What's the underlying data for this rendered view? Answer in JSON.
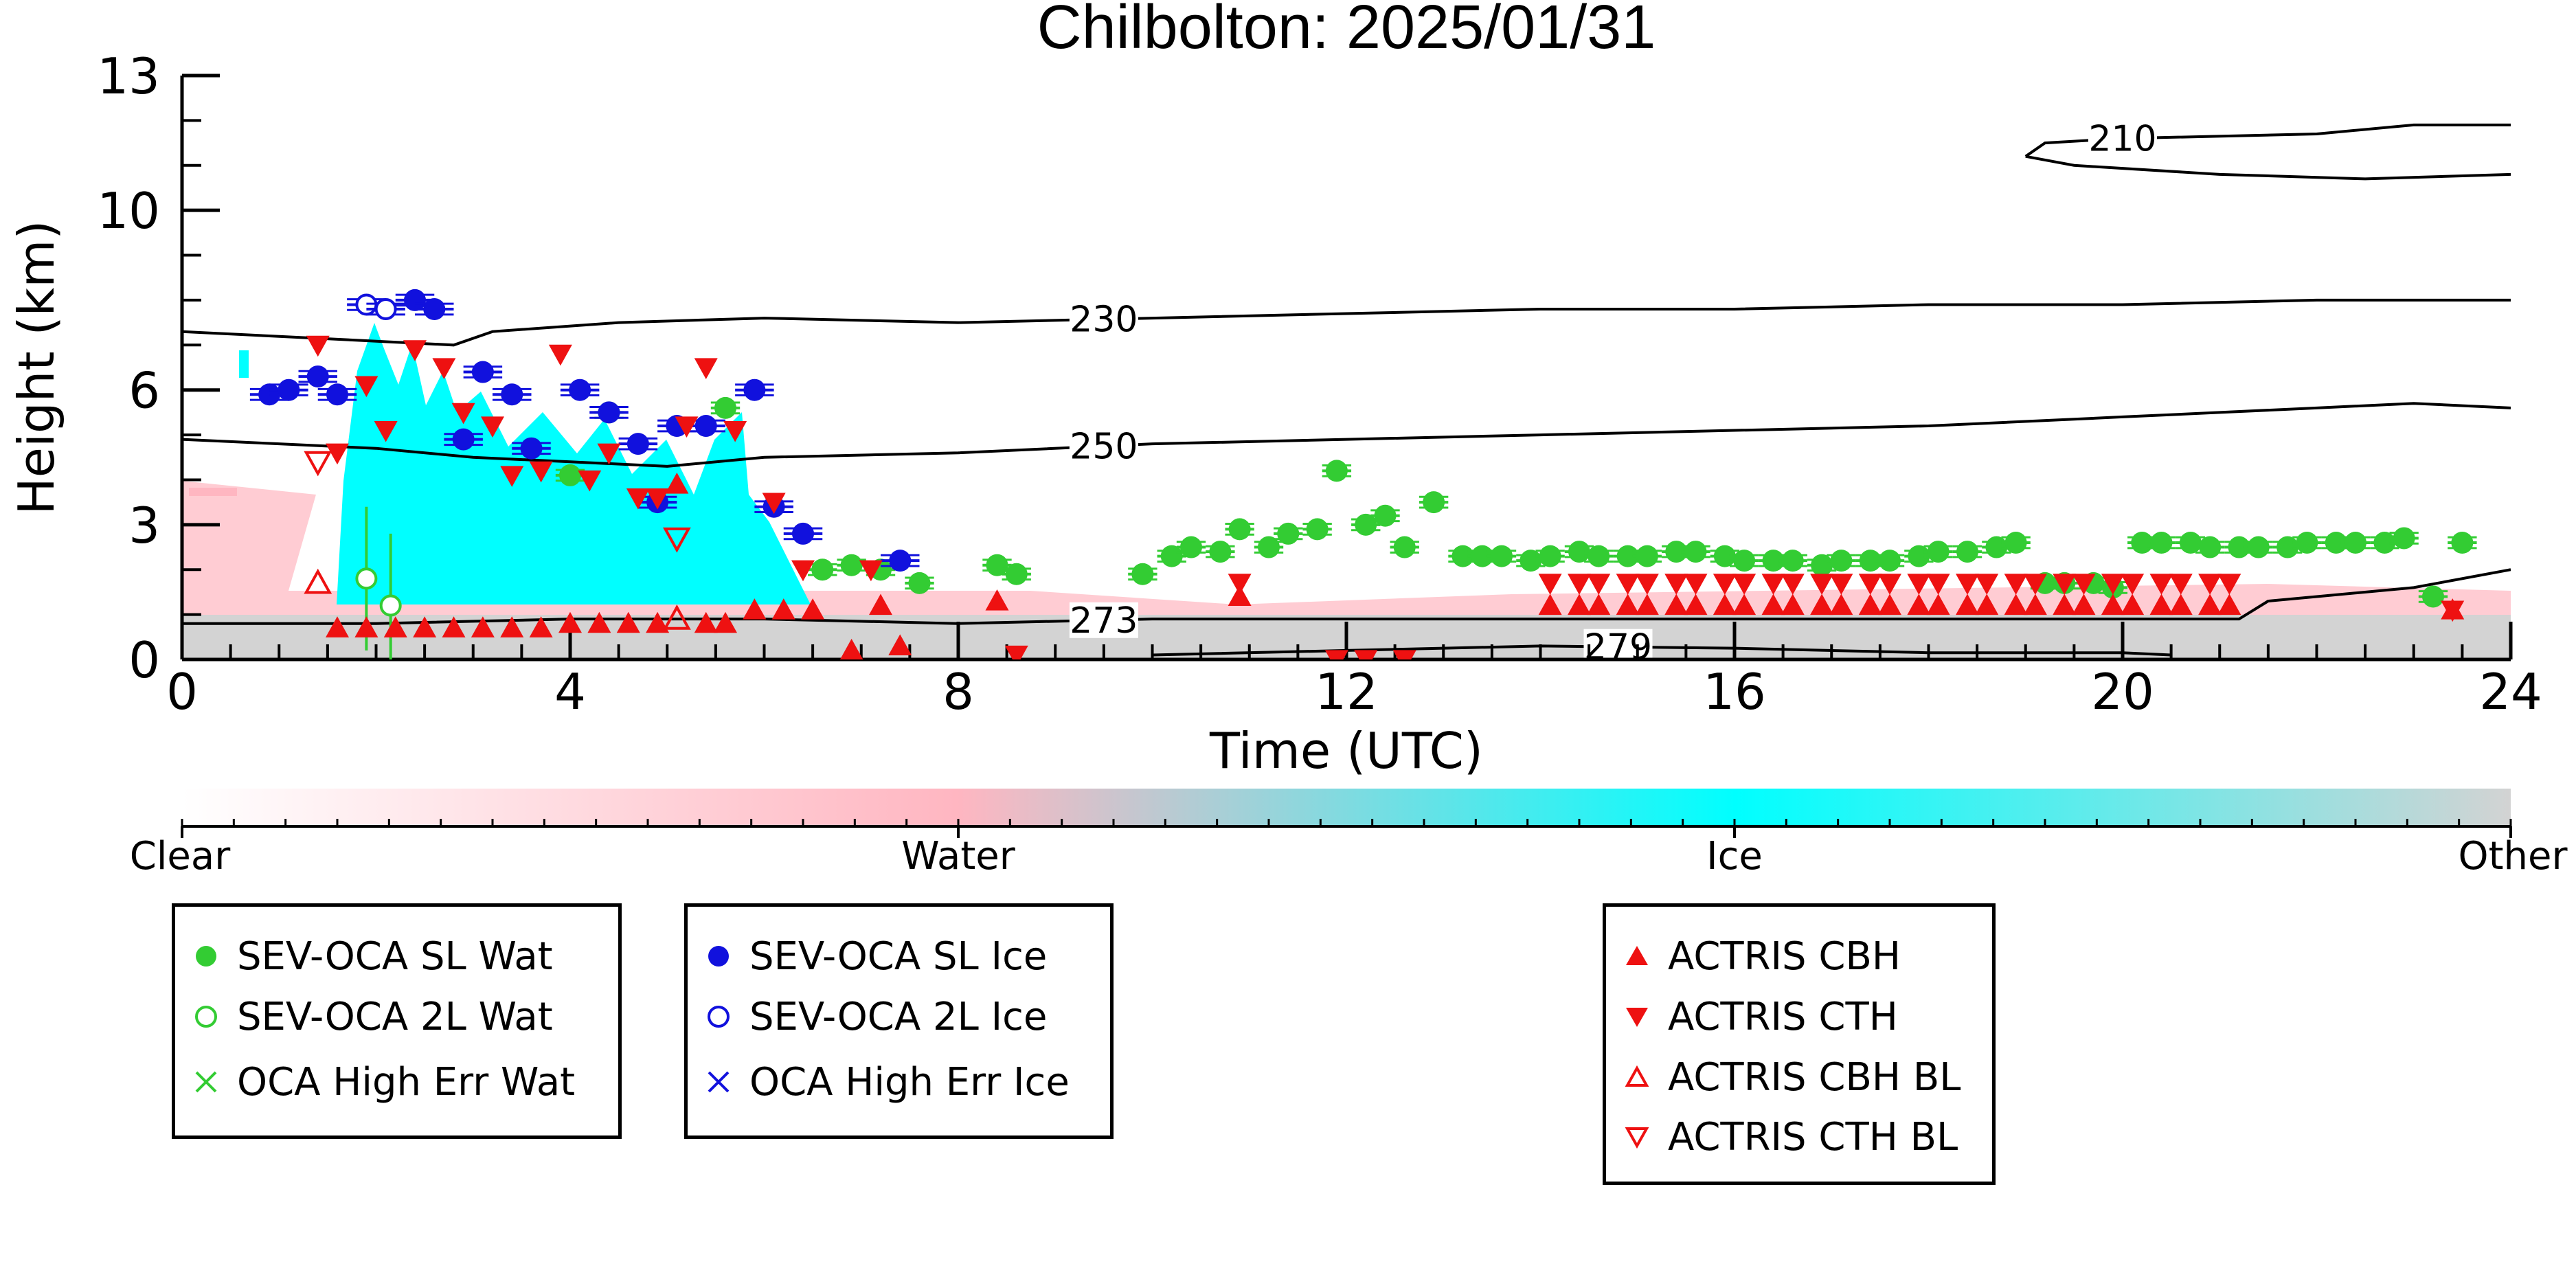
{
  "chart_data": {
    "type": "scatter",
    "title": "Chilbolton: 2025/01/31",
    "xlabel": "Time (UTC)",
    "ylabel": "Height (km)",
    "xlim": [
      0,
      24
    ],
    "ylim": [
      0,
      13
    ],
    "x_ticks": [
      "0",
      "4",
      "8",
      "12",
      "16",
      "20",
      "24"
    ],
    "y_ticks": [
      "0",
      "3",
      "6",
      "10",
      "13"
    ],
    "colorbar": {
      "labels": [
        "Clear",
        "Water",
        "Ice",
        "Other"
      ],
      "colors": {
        "clear": "#ffffff",
        "water": "#ffb6c1",
        "ice": "#00ffff",
        "other": "#d3d3d3"
      }
    },
    "contours": [
      {
        "label": "210",
        "x": [
          19.0,
          19.2,
          20.0,
          22.0,
          23.0,
          24.0
        ],
        "y": [
          11.2,
          11.5,
          11.6,
          11.7,
          11.9,
          11.9
        ]
      },
      {
        "label": "210",
        "x": [
          19.0,
          19.5,
          21.0,
          22.5,
          24.0
        ],
        "y": [
          11.2,
          11.0,
          10.8,
          10.7,
          10.8
        ]
      },
      {
        "label": "230",
        "x": [
          0,
          2.8,
          3.2,
          4.5,
          6,
          8,
          10,
          12,
          14,
          16,
          18,
          20,
          22,
          24
        ],
        "y": [
          7.3,
          7.0,
          7.3,
          7.5,
          7.6,
          7.5,
          7.6,
          7.7,
          7.8,
          7.8,
          7.9,
          7.9,
          8.0,
          8.0
        ]
      },
      {
        "label": "250",
        "x": [
          0,
          1,
          2,
          3,
          4,
          5,
          6,
          8,
          10,
          12,
          14,
          16,
          18,
          20,
          21,
          22,
          23,
          24
        ],
        "y": [
          4.9,
          4.8,
          4.7,
          4.5,
          4.4,
          4.3,
          4.5,
          4.6,
          4.8,
          4.9,
          5.0,
          5.1,
          5.2,
          5.4,
          5.5,
          5.6,
          5.7,
          5.6
        ]
      },
      {
        "label": "273",
        "x": [
          0,
          2,
          4,
          6,
          8,
          10,
          12,
          14,
          16,
          18,
          20,
          21.2,
          21.5,
          22,
          23,
          24
        ],
        "y": [
          0.8,
          0.8,
          0.9,
          0.9,
          0.8,
          0.9,
          0.9,
          0.9,
          0.9,
          0.9,
          0.9,
          0.9,
          1.3,
          1.4,
          1.6,
          2.0
        ]
      },
      {
        "label": "279",
        "x": [
          10,
          12,
          14,
          16,
          18,
          20,
          20.5
        ],
        "y": [
          0.1,
          0.2,
          0.3,
          0.25,
          0.15,
          0.15,
          0.1
        ]
      }
    ],
    "series": [
      {
        "name": "SEV-OCA SL Wat",
        "x": [
          4.0,
          4.4,
          5.6,
          6.6,
          6.9,
          7.2,
          7.6,
          8.4,
          8.6,
          9.9,
          10.2,
          10.4,
          10.7,
          10.9,
          11.2,
          11.4,
          11.7,
          11.9,
          12.2,
          12.4,
          12.6,
          12.9,
          13.2,
          13.4,
          13.6,
          13.9,
          14.1,
          14.4,
          14.6,
          14.9,
          15.1,
          15.4,
          15.6,
          15.9,
          16.1,
          16.4,
          16.6,
          16.9,
          17.1,
          17.4,
          17.6,
          17.9,
          18.1,
          18.4,
          18.7,
          18.9,
          19.2,
          19.4,
          19.7,
          19.9,
          20.2,
          20.4,
          20.7,
          20.9,
          21.2,
          21.4,
          21.7,
          21.9,
          22.2,
          22.4,
          22.7,
          22.9,
          23.2,
          23.5
        ],
        "y": [
          4.1,
          5.5,
          5.6,
          2.0,
          2.1,
          2.0,
          1.7,
          2.1,
          1.9,
          1.9,
          2.3,
          2.5,
          2.4,
          2.9,
          2.5,
          2.8,
          2.9,
          4.2,
          3.0,
          3.2,
          2.5,
          3.5,
          2.3,
          2.3,
          2.3,
          2.2,
          2.3,
          2.4,
          2.3,
          2.3,
          2.3,
          2.4,
          2.4,
          2.3,
          2.2,
          2.2,
          2.2,
          2.1,
          2.2,
          2.2,
          2.2,
          2.3,
          2.4,
          2.4,
          2.5,
          2.6,
          1.7,
          1.7,
          1.7,
          1.6,
          2.6,
          2.6,
          2.6,
          2.5,
          2.5,
          2.5,
          2.5,
          2.6,
          2.6,
          2.6,
          2.6,
          2.7,
          1.4,
          2.6
        ]
      },
      {
        "name": "SEV-OCA 2L Wat",
        "x": [
          1.9,
          2.15
        ],
        "y": [
          1.8,
          1.2
        ]
      },
      {
        "name": "SEV-OCA SL Ice",
        "x": [
          0.9,
          1.1,
          1.4,
          1.6,
          2.4,
          2.6,
          2.9,
          3.1,
          3.4,
          3.6,
          4.1,
          4.4,
          4.7,
          4.9,
          5.1,
          5.4,
          5.9,
          6.1,
          6.4,
          7.4
        ],
        "y": [
          5.9,
          6.0,
          6.3,
          5.9,
          8.0,
          7.8,
          4.9,
          6.4,
          5.9,
          4.7,
          6.0,
          5.5,
          4.8,
          3.5,
          5.2,
          5.2,
          6.0,
          3.4,
          2.8,
          2.2
        ]
      },
      {
        "name": "SEV-OCA 2L Ice",
        "x": [
          1.9,
          2.1
        ],
        "y": [
          7.9,
          7.8
        ]
      },
      {
        "name": "OCA High Err Wat",
        "x": [],
        "y": []
      },
      {
        "name": "OCA High Err Ice",
        "x": [],
        "y": []
      },
      {
        "name": "ACTRIS CBH",
        "x": [
          1.6,
          1.9,
          2.2,
          2.5,
          2.8,
          3.1,
          3.4,
          3.7,
          4.0,
          4.3,
          4.6,
          4.9,
          5.1,
          5.4,
          5.6,
          5.9,
          6.2,
          6.5,
          6.9,
          7.2,
          7.4,
          8.4,
          10.9,
          14.1,
          14.4,
          14.6,
          14.9,
          15.1,
          15.4,
          15.6,
          15.9,
          16.1,
          16.4,
          16.6,
          16.9,
          17.1,
          17.4,
          17.6,
          17.9,
          18.1,
          18.4,
          18.6,
          18.9,
          19.1,
          19.4,
          19.6,
          19.9,
          20.1,
          20.4,
          20.6,
          20.9,
          21.1,
          23.4
        ],
        "y": [
          0.7,
          0.7,
          0.7,
          0.7,
          0.7,
          0.7,
          0.7,
          0.7,
          0.8,
          0.8,
          0.8,
          0.8,
          3.9,
          0.8,
          0.8,
          1.1,
          1.1,
          1.1,
          0.2,
          1.2,
          0.3,
          1.3,
          1.4,
          1.2,
          1.2,
          1.2,
          1.2,
          1.2,
          1.2,
          1.2,
          1.2,
          1.2,
          1.2,
          1.2,
          1.2,
          1.2,
          1.2,
          1.2,
          1.2,
          1.2,
          1.2,
          1.2,
          1.2,
          1.2,
          1.2,
          1.2,
          1.2,
          1.2,
          1.2,
          1.2,
          1.2,
          1.2,
          1.1
        ]
      },
      {
        "name": "ACTRIS CTH",
        "x": [
          1.4,
          1.6,
          1.9,
          2.1,
          2.4,
          2.7,
          2.9,
          3.2,
          3.4,
          3.7,
          3.9,
          4.2,
          4.4,
          4.7,
          4.9,
          5.2,
          5.4,
          5.7,
          6.1,
          6.4,
          7.1,
          8.6,
          10.9,
          11.9,
          12.2,
          12.6,
          14.1,
          14.4,
          14.6,
          14.9,
          15.1,
          15.4,
          15.6,
          15.9,
          16.1,
          16.4,
          16.6,
          16.9,
          17.1,
          17.4,
          17.6,
          17.9,
          18.1,
          18.4,
          18.6,
          18.9,
          19.1,
          19.4,
          19.6,
          19.9,
          20.1,
          20.4,
          20.6,
          20.9,
          21.1,
          23.4
        ],
        "y": [
          7.0,
          4.6,
          6.1,
          5.1,
          6.9,
          6.5,
          5.5,
          5.2,
          4.1,
          4.2,
          6.8,
          4.0,
          4.6,
          3.6,
          3.6,
          5.2,
          6.5,
          5.1,
          3.5,
          2.0,
          2.0,
          0.1,
          1.7,
          0.0,
          0.0,
          0.0,
          1.7,
          1.7,
          1.7,
          1.7,
          1.7,
          1.7,
          1.7,
          1.7,
          1.7,
          1.7,
          1.7,
          1.7,
          1.7,
          1.7,
          1.7,
          1.7,
          1.7,
          1.7,
          1.7,
          1.7,
          1.7,
          1.7,
          1.7,
          1.7,
          1.7,
          1.7,
          1.7,
          1.7,
          1.7,
          1.1
        ]
      },
      {
        "name": "ACTRIS CBH BL",
        "x": [
          1.4,
          5.1
        ],
        "y": [
          1.7,
          0.9
        ]
      },
      {
        "name": "ACTRIS CTH BL",
        "x": [
          1.4,
          5.1
        ],
        "y": [
          4.4,
          2.7
        ]
      }
    ]
  },
  "legends": [
    {
      "items": [
        {
          "label": "SEV-OCA SL Wat",
          "marker": "filled-circle",
          "color": "#33cc33"
        },
        {
          "label": "SEV-OCA 2L Wat",
          "marker": "open-circle",
          "color": "#33cc33"
        },
        {
          "label": "OCA High Err Wat",
          "marker": "cross",
          "color": "#33cc33"
        }
      ]
    },
    {
      "items": [
        {
          "label": "SEV-OCA SL Ice",
          "marker": "filled-circle",
          "color": "#1111dd"
        },
        {
          "label": "SEV-OCA 2L Ice",
          "marker": "open-circle",
          "color": "#1111dd"
        },
        {
          "label": "OCA High Err Ice",
          "marker": "cross",
          "color": "#1111dd"
        }
      ]
    },
    {
      "items": [
        {
          "label": "ACTRIS CBH",
          "marker": "triangle-up",
          "color": "#ee1111"
        },
        {
          "label": "ACTRIS CTH",
          "marker": "triangle-down",
          "color": "#ee1111"
        },
        {
          "label": "ACTRIS CBH BL",
          "marker": "open-triangle-up",
          "color": "#ee1111"
        },
        {
          "label": "ACTRIS CTH BL",
          "marker": "open-triangle-down",
          "color": "#ee1111"
        }
      ]
    }
  ]
}
